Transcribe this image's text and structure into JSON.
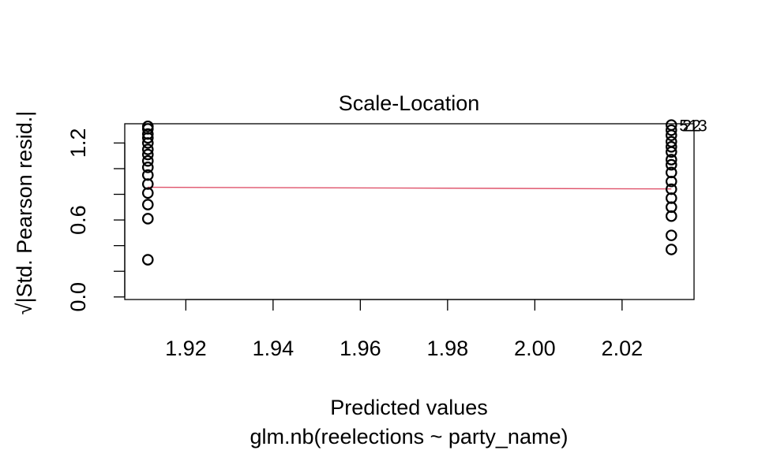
{
  "chart_data": {
    "type": "scatter",
    "title": "Scale-Location",
    "xlabel": "Predicted values",
    "ylabel": "√|Std. Pearson resid.|",
    "sub": "glm.nb(reelections ~ party_name)",
    "xlim": [
      1.906,
      2.0365
    ],
    "ylim": [
      -0.02,
      1.35
    ],
    "x_ticks": [
      1.92,
      1.94,
      1.96,
      1.98,
      2.0,
      2.02
    ],
    "x_tick_labels": [
      "1.92",
      "1.94",
      "1.96",
      "1.98",
      "2.00",
      "2.02"
    ],
    "y_ticks": [
      0.0,
      0.6,
      1.2
    ],
    "y_tick_labels": [
      "0.0",
      "0.6",
      "1.2"
    ],
    "y_minor_ticks": [
      0.0,
      0.2,
      0.4,
      0.6,
      0.8,
      1.0,
      1.2
    ],
    "grid": false,
    "point_color": "#000000",
    "smooth_color": "#DF536B",
    "groups": [
      {
        "x": 1.9113,
        "y": [
          1.33,
          1.31,
          1.27,
          1.24,
          1.2,
          1.15,
          1.11,
          1.06,
          1.01,
          0.95,
          0.88,
          0.81,
          0.72,
          0.61,
          0.29
        ]
      },
      {
        "x": 2.0313,
        "y": [
          1.34,
          1.3,
          1.26,
          1.21,
          1.17,
          1.13,
          1.07,
          1.03,
          0.97,
          0.9,
          0.84,
          0.77,
          0.7,
          0.63,
          0.48,
          0.37
        ]
      }
    ],
    "smooth": [
      {
        "x": 1.9113,
        "y": 0.855
      },
      {
        "x": 2.0313,
        "y": 0.842
      }
    ],
    "point_labels": [
      {
        "x": 2.0313,
        "y": 1.34,
        "text": "5"
      },
      {
        "x": 2.0313,
        "y": 1.34,
        "text": "22"
      },
      {
        "x": 2.0313,
        "y": 1.34,
        "text": "13"
      }
    ]
  }
}
